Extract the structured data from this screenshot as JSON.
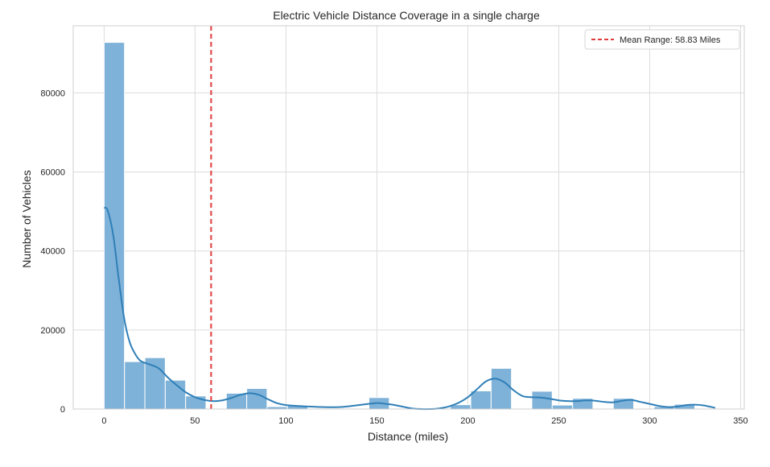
{
  "chart_data": {
    "type": "histogram",
    "title": "Electric Vehicle Distance Coverage in a single charge",
    "xlabel": "Distance (miles)",
    "ylabel": "Number of Vehicles",
    "xlim": [
      -17,
      352
    ],
    "ylim": [
      0,
      97000
    ],
    "xticks": [
      0,
      50,
      100,
      150,
      200,
      250,
      300,
      350
    ],
    "yticks": [
      0,
      20000,
      40000,
      60000,
      80000
    ],
    "grid": true,
    "legend_position": "top-right",
    "bar_color": "#7fb2d8",
    "kde_color": "#2f7fb8",
    "mean_line_color": "#e03b3b",
    "bins": [
      {
        "x0": 0,
        "x1": 11.2,
        "count": 92800
      },
      {
        "x0": 11.2,
        "x1": 22.4,
        "count": 12000
      },
      {
        "x0": 22.4,
        "x1": 33.6,
        "count": 13000
      },
      {
        "x0": 33.6,
        "x1": 44.8,
        "count": 7300
      },
      {
        "x0": 44.8,
        "x1": 56.0,
        "count": 3300
      },
      {
        "x0": 56.0,
        "x1": 67.2,
        "count": 0
      },
      {
        "x0": 67.2,
        "x1": 78.4,
        "count": 4000
      },
      {
        "x0": 78.4,
        "x1": 89.6,
        "count": 5200
      },
      {
        "x0": 89.6,
        "x1": 100.8,
        "count": 600
      },
      {
        "x0": 100.8,
        "x1": 112.0,
        "count": 900
      },
      {
        "x0": 112.0,
        "x1": 123.2,
        "count": 0
      },
      {
        "x0": 123.2,
        "x1": 134.4,
        "count": 0
      },
      {
        "x0": 134.4,
        "x1": 145.6,
        "count": 0
      },
      {
        "x0": 145.6,
        "x1": 156.8,
        "count": 2900
      },
      {
        "x0": 156.8,
        "x1": 168.0,
        "count": 0
      },
      {
        "x0": 168.0,
        "x1": 179.2,
        "count": 0
      },
      {
        "x0": 179.2,
        "x1": 190.4,
        "count": 0
      },
      {
        "x0": 190.4,
        "x1": 201.6,
        "count": 1100
      },
      {
        "x0": 201.6,
        "x1": 212.8,
        "count": 4600
      },
      {
        "x0": 212.8,
        "x1": 224.0,
        "count": 10300
      },
      {
        "x0": 224.0,
        "x1": 235.2,
        "count": 0
      },
      {
        "x0": 235.2,
        "x1": 246.4,
        "count": 4500
      },
      {
        "x0": 246.4,
        "x1": 257.6,
        "count": 1000
      },
      {
        "x0": 257.6,
        "x1": 268.8,
        "count": 2700
      },
      {
        "x0": 268.8,
        "x1": 280.0,
        "count": 0
      },
      {
        "x0": 280.0,
        "x1": 291.2,
        "count": 2700
      },
      {
        "x0": 291.2,
        "x1": 302.4,
        "count": 0
      },
      {
        "x0": 302.4,
        "x1": 313.6,
        "count": 600
      },
      {
        "x0": 313.6,
        "x1": 324.8,
        "count": 1200
      },
      {
        "x0": 324.8,
        "x1": 337.0,
        "count": 0
      }
    ],
    "kde": {
      "x": [
        0,
        2,
        5,
        8,
        11,
        14,
        17,
        20,
        25,
        30,
        35,
        40,
        45,
        50,
        55,
        60,
        65,
        70,
        75,
        80,
        85,
        90,
        95,
        100,
        110,
        120,
        130,
        140,
        150,
        155,
        160,
        170,
        180,
        185,
        190,
        195,
        200,
        205,
        210,
        215,
        220,
        225,
        230,
        235,
        240,
        245,
        250,
        255,
        260,
        265,
        270,
        275,
        280,
        285,
        290,
        295,
        300,
        305,
        310,
        315,
        320,
        325,
        330,
        336
      ],
      "y": [
        51000,
        50200,
        44000,
        33000,
        23000,
        17000,
        14000,
        12200,
        11300,
        10300,
        8000,
        6000,
        4200,
        3000,
        2300,
        2000,
        2200,
        2800,
        3600,
        4000,
        3600,
        2500,
        1500,
        1000,
        700,
        500,
        500,
        1000,
        1500,
        1300,
        1000,
        100,
        0,
        200,
        700,
        1600,
        3000,
        5000,
        7000,
        7700,
        6800,
        4800,
        3300,
        3000,
        2900,
        2600,
        2200,
        2000,
        2000,
        2200,
        2100,
        1800,
        1700,
        2100,
        2300,
        1800,
        1300,
        800,
        500,
        600,
        1000,
        1100,
        900,
        300
      ]
    },
    "mean_line": {
      "x": 58.83,
      "label": "Mean Range: 58.83 Miles"
    }
  }
}
